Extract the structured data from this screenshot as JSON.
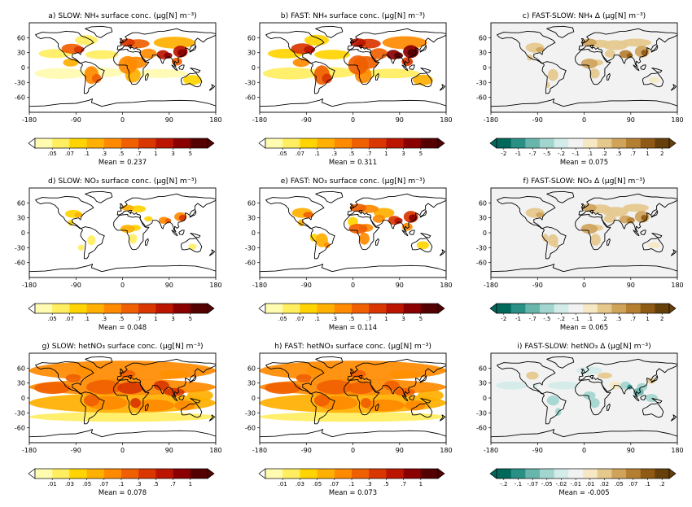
{
  "palettes": {
    "conc": [
      "#fffbb0",
      "#ffee60",
      "#ffd400",
      "#ffb000",
      "#ff8a00",
      "#f06000",
      "#d93600",
      "#bb1500",
      "#8a0000",
      "#540000"
    ],
    "diff": [
      "#00695c",
      "#2a8f85",
      "#68b5ac",
      "#a3d5cf",
      "#d3ece9",
      "#f2f2f2",
      "#f6e8c3",
      "#e5c98c",
      "#cfa35a",
      "#b57f31",
      "#8f5a15",
      "#66400a"
    ]
  },
  "labels": {
    "conc_a": [
      ".05",
      ".07",
      ".1",
      ".3",
      ".5",
      ".7",
      "1",
      "3",
      "5"
    ],
    "conc_b": [
      ".01",
      ".03",
      ".05",
      ".07",
      ".1",
      ".3",
      ".5",
      ".7",
      "1"
    ],
    "diff_a": [
      "-2",
      "-1",
      "-.7",
      "-.5",
      "-.2",
      "-.1",
      ".1",
      ".2",
      ".5",
      ".7",
      "1",
      "2"
    ],
    "diff_b": [
      "-.2",
      "-.1",
      "-.07",
      "-.05",
      "-.02",
      "-.01",
      ".01",
      ".02",
      ".05",
      ".07",
      ".1",
      ".2"
    ]
  },
  "chart_data": [
    {
      "type": "heatmap",
      "title": "a) SLOW: NH₄ surface conc. (μg[N] m⁻³)",
      "mean_label": "Mean = 0.237",
      "colorbar": "conc",
      "tick_labels": "conc_a",
      "xlim": [
        -180,
        180
      ],
      "ylim": [
        -90,
        90
      ],
      "xticks": [
        "-180",
        "-90",
        "0",
        "90",
        "180"
      ],
      "yticks": [
        "60",
        "30",
        "0",
        "-30",
        "-60"
      ]
    },
    {
      "type": "heatmap",
      "title": "b) FAST: NH₄ surface conc. (μg[N] m⁻³)",
      "mean_label": "Mean = 0.311",
      "colorbar": "conc",
      "tick_labels": "conc_a",
      "xlim": [
        -180,
        180
      ],
      "ylim": [
        -90,
        90
      ],
      "xticks": [
        "-180",
        "-90",
        "0",
        "90",
        "180"
      ],
      "yticks": [
        "60",
        "30",
        "0",
        "-30",
        "-60"
      ]
    },
    {
      "type": "heatmap",
      "title": "c) FAST-SLOW: NH₄ Δ (μg[N] m⁻³)",
      "mean_label": "Mean = 0.075",
      "colorbar": "diff",
      "tick_labels": "diff_a",
      "xlim": [
        -180,
        180
      ],
      "ylim": [
        -90,
        90
      ],
      "xticks": [
        "-180",
        "-90",
        "0",
        "90",
        "180"
      ],
      "yticks": [
        "60",
        "30",
        "0",
        "-30",
        "-60"
      ]
    },
    {
      "type": "heatmap",
      "title": "d) SLOW: NO₃ surface conc. (μg[N] m⁻³)",
      "mean_label": "Mean = 0.048",
      "colorbar": "conc",
      "tick_labels": "conc_a",
      "xlim": [
        -180,
        180
      ],
      "ylim": [
        -90,
        90
      ],
      "xticks": [
        "-180",
        "-90",
        "0",
        "90",
        "180"
      ],
      "yticks": [
        "60",
        "30",
        "0",
        "-30",
        "-60"
      ]
    },
    {
      "type": "heatmap",
      "title": "e) FAST: NO₃ surface conc. (μg[N] m⁻³)",
      "mean_label": "Mean = 0.114",
      "colorbar": "conc",
      "tick_labels": "conc_a",
      "xlim": [
        -180,
        180
      ],
      "ylim": [
        -90,
        90
      ],
      "xticks": [
        "-180",
        "-90",
        "0",
        "90",
        "180"
      ],
      "yticks": [
        "60",
        "30",
        "0",
        "-30",
        "-60"
      ]
    },
    {
      "type": "heatmap",
      "title": "f) FAST-SLOW: NO₃ Δ (μg[N] m⁻³)",
      "mean_label": "Mean = 0.065",
      "colorbar": "diff",
      "tick_labels": "diff_a",
      "xlim": [
        -180,
        180
      ],
      "ylim": [
        -90,
        90
      ],
      "xticks": [
        "-180",
        "-90",
        "0",
        "90",
        "180"
      ],
      "yticks": [
        "60",
        "30",
        "0",
        "-30",
        "-60"
      ]
    },
    {
      "type": "heatmap",
      "title": "g) SLOW: hetNO₃ surface conc. (μg[N] m⁻³)",
      "mean_label": "Mean = 0.078",
      "colorbar": "conc",
      "tick_labels": "conc_b",
      "xlim": [
        -180,
        180
      ],
      "ylim": [
        -90,
        90
      ],
      "xticks": [
        "-180",
        "-90",
        "0",
        "90",
        "180"
      ],
      "yticks": [
        "60",
        "30",
        "0",
        "-30",
        "-60"
      ]
    },
    {
      "type": "heatmap",
      "title": "h) FAST: hetNO₃ surface conc. (μg[N] m⁻³)",
      "mean_label": "Mean = 0.073",
      "colorbar": "conc",
      "tick_labels": "conc_b",
      "xlim": [
        -180,
        180
      ],
      "ylim": [
        -90,
        90
      ],
      "xticks": [
        "-180",
        "-90",
        "0",
        "90",
        "180"
      ],
      "yticks": [
        "60",
        "30",
        "0",
        "-30",
        "-60"
      ]
    },
    {
      "type": "heatmap",
      "title": "i) FAST-SLOW: hetNO₃ Δ (μg[N] m⁻³)",
      "mean_label": "Mean = -0.005",
      "colorbar": "diff",
      "tick_labels": "diff_b",
      "xlim": [
        -180,
        180
      ],
      "ylim": [
        -90,
        90
      ],
      "xticks": [
        "-180",
        "-90",
        "0",
        "90",
        "180"
      ],
      "yticks": [
        "60",
        "30",
        "0",
        "-30",
        "-60"
      ]
    }
  ]
}
